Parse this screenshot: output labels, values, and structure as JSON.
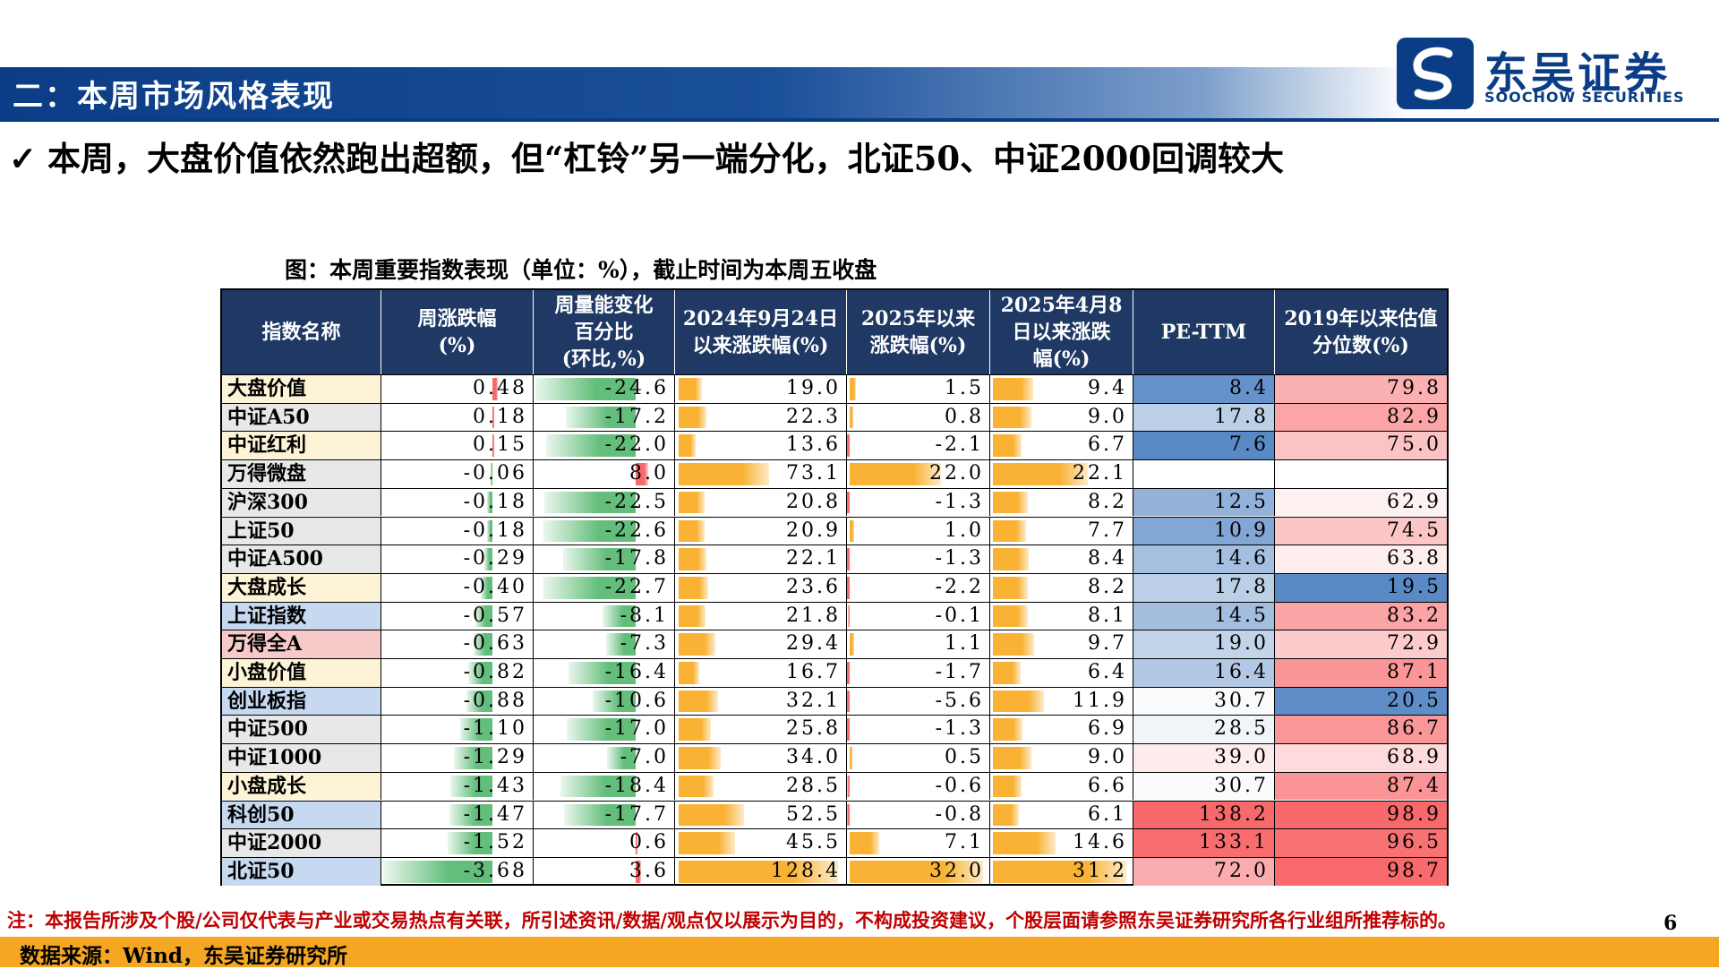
{
  "header": {
    "section_title": "二：本周市场风格表现",
    "logo_name": "东吴证券",
    "logo_sub": "SOOCHOW SECURITIES"
  },
  "headline": {
    "check": "✓",
    "text": "本周，大盘价值依然跑出超额，但“杠铃”另一端分化，北证50、中证2000回调较大"
  },
  "figure": {
    "caption": "图：本周重要指数表现（单位：%），截止时间为本周五收盘"
  },
  "table": {
    "headers": [
      [
        "指数名称"
      ],
      [
        "周涨跌幅",
        "(%)"
      ],
      [
        "周量能变化",
        "百分比",
        "(环比,%)"
      ],
      [
        "2024年9月24日",
        "以来涨跌幅(%)"
      ],
      [
        "2025年以来",
        "涨跌幅(%)"
      ],
      [
        "2025年4月8",
        "日以来涨跌",
        "幅(%)"
      ],
      [
        "PE-TTM"
      ],
      [
        "2019年以来估值",
        "分位数(%)"
      ]
    ],
    "rows": [
      {
        "name": "大盘价值",
        "name_bg": "#fdf3d6",
        "weekly": "0.48",
        "volume": "-24.6",
        "since_0924": "19.0",
        "ytd": "1.5",
        "since_0408": "9.4",
        "pe": "8.4",
        "pct": "79.8"
      },
      {
        "name": "中证A50",
        "name_bg": "#e8e8e8",
        "weekly": "0.18",
        "volume": "-17.2",
        "since_0924": "22.3",
        "ytd": "0.8",
        "since_0408": "9.0",
        "pe": "17.8",
        "pct": "82.9"
      },
      {
        "name": "中证红利",
        "name_bg": "#fdf3d6",
        "weekly": "0.15",
        "volume": "-22.0",
        "since_0924": "13.6",
        "ytd": "-2.1",
        "since_0408": "6.7",
        "pe": "7.6",
        "pct": "75.0"
      },
      {
        "name": "万得微盘",
        "name_bg": "#e8e8e8",
        "weekly": "-0.06",
        "volume": "8.0",
        "since_0924": "73.1",
        "ytd": "22.0",
        "since_0408": "22.1",
        "pe": "",
        "pct": ""
      },
      {
        "name": "沪深300",
        "name_bg": "#e8e8e8",
        "weekly": "-0.18",
        "volume": "-22.5",
        "since_0924": "20.8",
        "ytd": "-1.3",
        "since_0408": "8.2",
        "pe": "12.5",
        "pct": "62.9"
      },
      {
        "name": "上证50",
        "name_bg": "#e8e8e8",
        "weekly": "-0.18",
        "volume": "-22.6",
        "since_0924": "20.9",
        "ytd": "1.0",
        "since_0408": "7.7",
        "pe": "10.9",
        "pct": "74.5"
      },
      {
        "name": "中证A500",
        "name_bg": "#e8e8e8",
        "weekly": "-0.29",
        "volume": "-17.8",
        "since_0924": "22.1",
        "ytd": "-1.3",
        "since_0408": "8.4",
        "pe": "14.6",
        "pct": "63.8"
      },
      {
        "name": "大盘成长",
        "name_bg": "#fdf3d6",
        "weekly": "-0.40",
        "volume": "-22.7",
        "since_0924": "23.6",
        "ytd": "-2.2",
        "since_0408": "8.2",
        "pe": "17.8",
        "pct": "19.5"
      },
      {
        "name": "上证指数",
        "name_bg": "#c7d9f0",
        "weekly": "-0.57",
        "volume": "-8.1",
        "since_0924": "21.8",
        "ytd": "-0.1",
        "since_0408": "8.1",
        "pe": "14.5",
        "pct": "83.2"
      },
      {
        "name": "万得全A",
        "name_bg": "#f8c9c9",
        "weekly": "-0.63",
        "volume": "-7.3",
        "since_0924": "29.4",
        "ytd": "1.1",
        "since_0408": "9.7",
        "pe": "19.0",
        "pct": "72.9"
      },
      {
        "name": "小盘价值",
        "name_bg": "#fdf3d6",
        "weekly": "-0.82",
        "volume": "-16.4",
        "since_0924": "16.7",
        "ytd": "-1.7",
        "since_0408": "6.4",
        "pe": "16.4",
        "pct": "87.1"
      },
      {
        "name": "创业板指",
        "name_bg": "#c7d9f0",
        "weekly": "-0.88",
        "volume": "-10.6",
        "since_0924": "32.1",
        "ytd": "-5.6",
        "since_0408": "11.9",
        "pe": "30.7",
        "pct": "20.5"
      },
      {
        "name": "中证500",
        "name_bg": "#e8e8e8",
        "weekly": "-1.10",
        "volume": "-17.0",
        "since_0924": "25.8",
        "ytd": "-1.3",
        "since_0408": "6.9",
        "pe": "28.5",
        "pct": "86.7"
      },
      {
        "name": "中证1000",
        "name_bg": "#e8e8e8",
        "weekly": "-1.29",
        "volume": "-7.0",
        "since_0924": "34.0",
        "ytd": "0.5",
        "since_0408": "9.0",
        "pe": "39.0",
        "pct": "68.9"
      },
      {
        "name": "小盘成长",
        "name_bg": "#fdf3d6",
        "weekly": "-1.43",
        "volume": "-18.4",
        "since_0924": "28.5",
        "ytd": "-0.6",
        "since_0408": "6.6",
        "pe": "30.7",
        "pct": "87.4"
      },
      {
        "name": "科创50",
        "name_bg": "#c7d9f0",
        "weekly": "-1.47",
        "volume": "-17.7",
        "since_0924": "52.5",
        "ytd": "-0.8",
        "since_0408": "6.1",
        "pe": "138.2",
        "pct": "98.9"
      },
      {
        "name": "中证2000",
        "name_bg": "#e8e8e8",
        "weekly": "-1.52",
        "volume": "0.6",
        "since_0924": "45.5",
        "ytd": "7.1",
        "since_0408": "14.6",
        "pe": "133.1",
        "pct": "96.5"
      },
      {
        "name": "北证50",
        "name_bg": "#c7d9f0",
        "weekly": "-3.68",
        "volume": "3.6",
        "since_0924": "128.4",
        "ytd": "32.0",
        "since_0408": "31.2",
        "pe": "72.0",
        "pct": "98.7"
      }
    ]
  },
  "colors": {
    "brand": "#0b3d86",
    "table_header": "#1f3864",
    "bar_orange": "#f9b233",
    "bar_green": "#63be7b",
    "bar_red": "#f8696b",
    "source_band": "#f5a623",
    "footnote": "#c00000"
  },
  "footer": {
    "note": "注：本报告所涉及个股/公司仅代表与产业或交易热点有关联，所引述资讯/数据/观点仅以展示为目的，不构成投资建议，个股层面请参照东吴证券研究所各行业组所推荐标的。",
    "page_number": "6",
    "source": "数据来源：Wind，东吴证券研究所"
  }
}
